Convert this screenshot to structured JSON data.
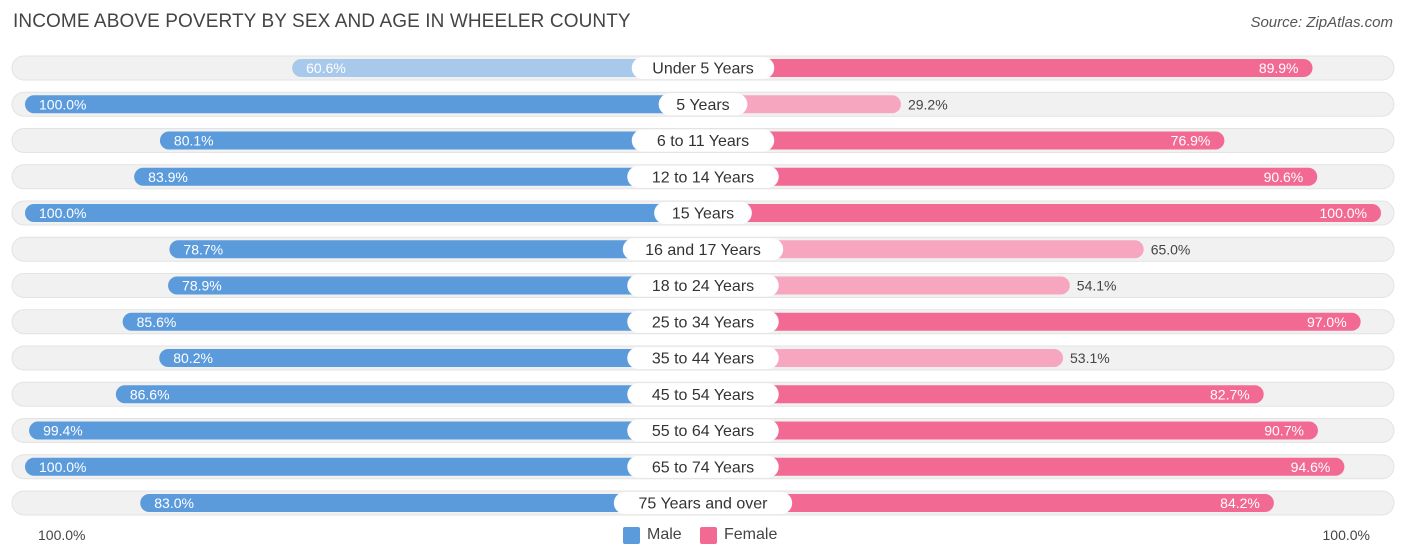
{
  "title": "INCOME ABOVE POVERTY BY SEX AND AGE IN WHEELER COUNTY",
  "source": "Source: ZipAtlas.com",
  "colors": {
    "male": "#5b9bdc",
    "male_light": "#a8c8ec",
    "female": "#f26a94",
    "female_light": "#f7a6c0",
    "track": "#f1f1f1",
    "track_border": "#e3e3e3"
  },
  "legend": {
    "male_label": "Male",
    "female_label": "Female"
  },
  "axis": {
    "left_label": "100.0%",
    "right_label": "100.0%"
  },
  "chart_data": {
    "type": "bar",
    "orientation": "horizontal-diverging",
    "title": "INCOME ABOVE POVERTY BY SEX AND AGE IN WHEELER COUNTY",
    "xlim": [
      0,
      100
    ],
    "unit": "%",
    "categories": [
      "Under 5 Years",
      "5 Years",
      "6 to 11 Years",
      "12 to 14 Years",
      "15 Years",
      "16 and 17 Years",
      "18 to 24 Years",
      "25 to 34 Years",
      "35 to 44 Years",
      "45 to 54 Years",
      "55 to 64 Years",
      "65 to 74 Years",
      "75 Years and over"
    ],
    "series": [
      {
        "name": "Male",
        "values": [
          60.6,
          100.0,
          80.1,
          83.9,
          100.0,
          78.7,
          78.9,
          85.6,
          80.2,
          86.6,
          99.4,
          100.0,
          83.0
        ],
        "labels": [
          "60.6%",
          "100.0%",
          "80.1%",
          "83.9%",
          "100.0%",
          "78.7%",
          "78.9%",
          "85.6%",
          "80.2%",
          "86.6%",
          "99.4%",
          "100.0%",
          "83.0%"
        ]
      },
      {
        "name": "Female",
        "values": [
          89.9,
          29.2,
          76.9,
          90.6,
          100.0,
          65.0,
          54.1,
          97.0,
          53.1,
          82.7,
          90.7,
          94.6,
          84.2
        ],
        "labels": [
          "89.9%",
          "29.2%",
          "76.9%",
          "90.6%",
          "100.0%",
          "65.0%",
          "54.1%",
          "97.0%",
          "53.1%",
          "82.7%",
          "90.7%",
          "94.6%",
          "84.2%"
        ]
      }
    ]
  }
}
